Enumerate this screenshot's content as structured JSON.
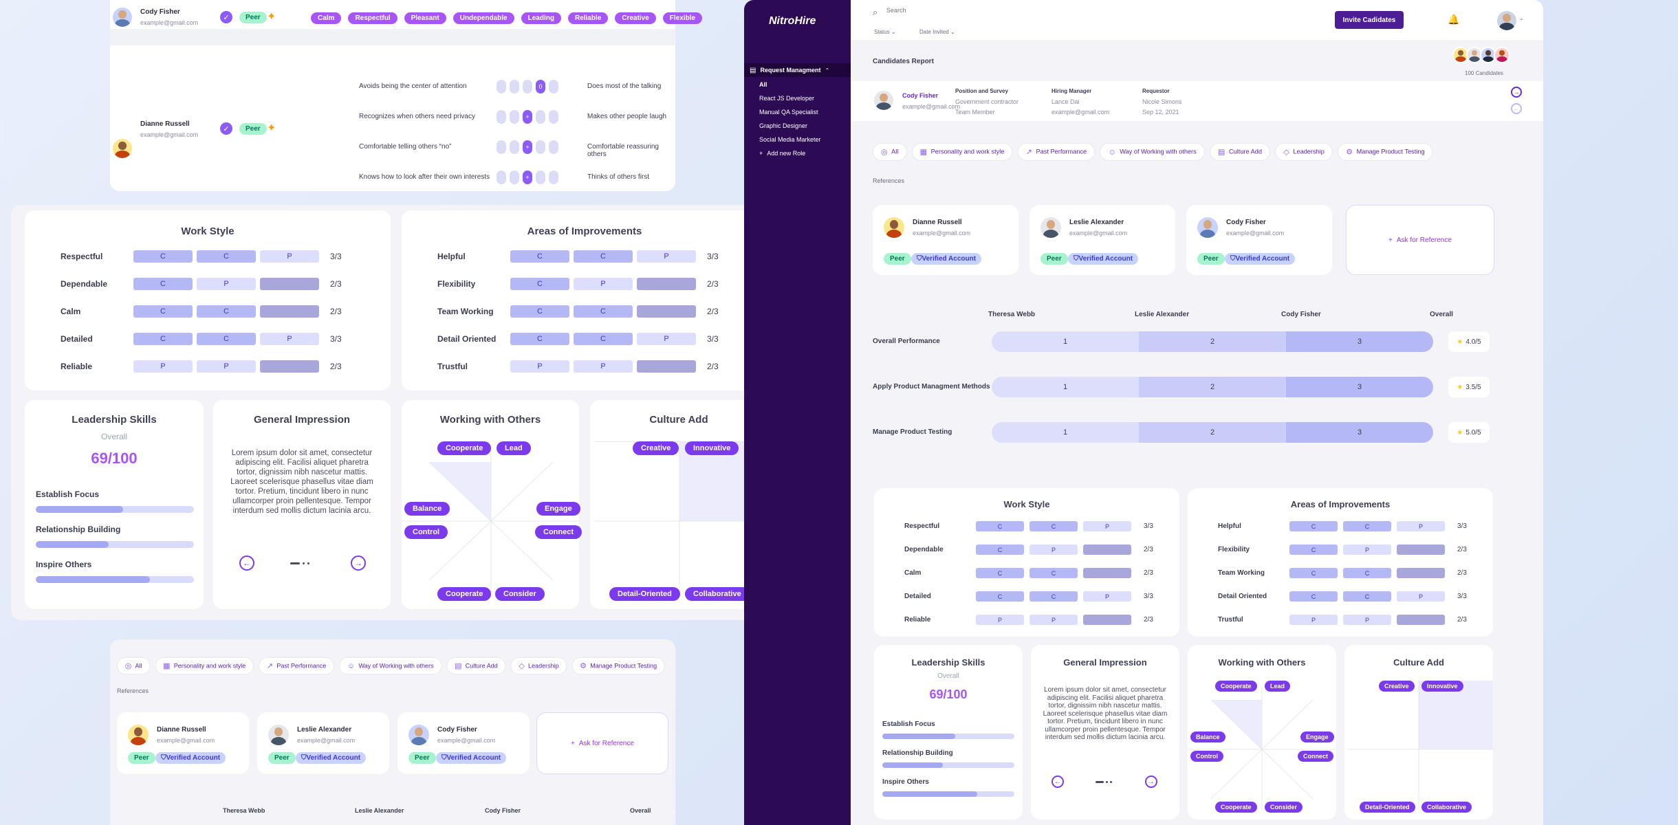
{
  "top_panel": {
    "row1": {
      "name": "Cody Fisher",
      "email": "example@gmail.com",
      "badge": "Peer",
      "traits": [
        "Calm",
        "Respectful",
        "Pleasant",
        "Undependable",
        "Leading",
        "Reliable",
        "Creative",
        "Flexible"
      ]
    },
    "row2": {
      "name": "Dianne Russell",
      "email": "example@gmail.com",
      "badge": "Peer"
    },
    "personality": [
      {
        "left": "Avoids being the center of attention",
        "right": "Does most of the talking",
        "selected": 3,
        "selected_label": "0"
      },
      {
        "left": "Recognizes when others need privacy",
        "right": "Makes other people laugh",
        "selected": 2,
        "selected_label": "+"
      },
      {
        "left": "Comfortable telling others “no”",
        "right": "Comfortable reassuring others",
        "selected": 2,
        "selected_label": "+"
      },
      {
        "left": "Knows how to look after their own interests",
        "right": "Thinks of others first",
        "selected": 2,
        "selected_label": "+"
      }
    ]
  },
  "work_style": {
    "title": "Work Style",
    "rows": [
      {
        "label": "Respectful",
        "cells": [
          "C",
          "C",
          "P"
        ],
        "score": "3/3"
      },
      {
        "label": "Dependable",
        "cells": [
          "C",
          "P",
          ""
        ],
        "score": "2/3"
      },
      {
        "label": "Calm",
        "cells": [
          "C",
          "C",
          ""
        ],
        "score": "2/3"
      },
      {
        "label": "Detailed",
        "cells": [
          "C",
          "C",
          "P"
        ],
        "score": "3/3"
      },
      {
        "label": "Reliable",
        "cells": [
          "P",
          "P",
          ""
        ],
        "score": "2/3"
      }
    ]
  },
  "improvements": {
    "title": "Areas of Improvements",
    "rows": [
      {
        "label": "Helpful",
        "cells": [
          "C",
          "C",
          "P"
        ],
        "score": "3/3"
      },
      {
        "label": "Flexibility",
        "cells": [
          "C",
          "P",
          ""
        ],
        "score": "2/3"
      },
      {
        "label": "Team Working",
        "cells": [
          "C",
          "C",
          ""
        ],
        "score": "2/3"
      },
      {
        "label": "Detail Oriented",
        "cells": [
          "C",
          "C",
          "P"
        ],
        "score": "3/3"
      },
      {
        "label": "Trustful",
        "cells": [
          "P",
          "P",
          ""
        ],
        "score": "2/3"
      }
    ]
  },
  "leadership": {
    "title": "Leadership Skills",
    "overall_label": "Overall",
    "score": "69/100",
    "skills": [
      {
        "label": "Establish Focus",
        "value": 0.55
      },
      {
        "label": "Relationship Building",
        "value": 0.46
      },
      {
        "label": "Inspire Others",
        "value": 0.72
      }
    ]
  },
  "impression": {
    "title": "General Impression",
    "text": "Lorem ipsum dolor sit amet, consectetur adipiscing elit. Facilisi aliquet pharetra tortor, dignissim nibh nascetur mattis. Laoreet scelerisque phasellus vitae diam tortor. Pretium, tincidunt libero in nunc ullamcorper proin pellentesque. Tempor interdum sed mollis dictum lacinia arcu."
  },
  "working_others": {
    "title": "Working with Others",
    "labels": {
      "top_left": "Cooperate",
      "top_right": "Lead",
      "mid_left": "Balance",
      "mid_right": "Engage",
      "low_left": "Control",
      "low_right": "Connect",
      "bottom_left": "Cooperate",
      "bottom_right": "Consider"
    }
  },
  "culture": {
    "title": "Culture Add",
    "labels": {
      "top_left": "Creative",
      "top_right": "Innovative",
      "bottom_left": "Detail-Oriented",
      "bottom_right": "Collaborative"
    }
  },
  "filters": [
    "All",
    "Personality and work style",
    "Past Performance",
    "Way of Working with others",
    "Culture Add",
    "Leadership",
    "Manage Product Testing"
  ],
  "references_label": "References",
  "references": [
    {
      "name": "Dianne Russell",
      "email": "example@gmail.com",
      "badge": "Peer",
      "verified": "Verified Account"
    },
    {
      "name": "Leslie Alexander",
      "email": "example@gmail.com",
      "badge": "Peer",
      "verified": "Verified Account"
    },
    {
      "name": "Cody Fisher",
      "email": "example@gmail.com",
      "badge": "Peer",
      "verified": "Verified Account"
    }
  ],
  "ask_reference": "Ask for Reference",
  "compare_headers": [
    "Theresa Webb",
    "Leslie Alexander",
    "Cody Fisher",
    "Overall"
  ],
  "app": {
    "brand": "NitroHire",
    "search_placeholder": "Search",
    "invite_button": "Invite Cadidates",
    "filter_status": "Status",
    "filter_date": "Date Invited",
    "page_title": "Candidates Report",
    "candidates_count": "100 Candidates",
    "nav_section": "Request Managment",
    "nav_items": [
      "All",
      "React JS Developer",
      "Manual QA Specialist",
      "Graphic Designer",
      "Social Media Marketer"
    ],
    "add_role": "Add new Role",
    "candidate": {
      "name": "Cody Fisher",
      "email": "example@gmail.com",
      "position_label": "Position and Survey",
      "position_value": "Government contractor",
      "position_sub": "Team Member",
      "manager_label": "Hiring Manager",
      "manager_name": "Lance Dai",
      "manager_email": "example@gmail.com",
      "requestor_label": "Requestor",
      "requestor_name": "Nicole Simons",
      "requestor_date": "Sep 12, 2021"
    },
    "performance": [
      {
        "label": "Overall Performance",
        "values": [
          "1",
          "2",
          "3"
        ],
        "overall": "4.0/5"
      },
      {
        "label": "Apply Product Managment Methods",
        "values": [
          "1",
          "2",
          "3"
        ],
        "overall": "3.5/5"
      },
      {
        "label": "Manage Product Testing",
        "values": [
          "1",
          "2",
          "3"
        ],
        "overall": "5.0/5"
      }
    ]
  },
  "colors": {
    "accent": "#8b5cf6",
    "sidebar": "#2d0a54",
    "chip": "#a855f7",
    "invite": "#4c1d95"
  }
}
